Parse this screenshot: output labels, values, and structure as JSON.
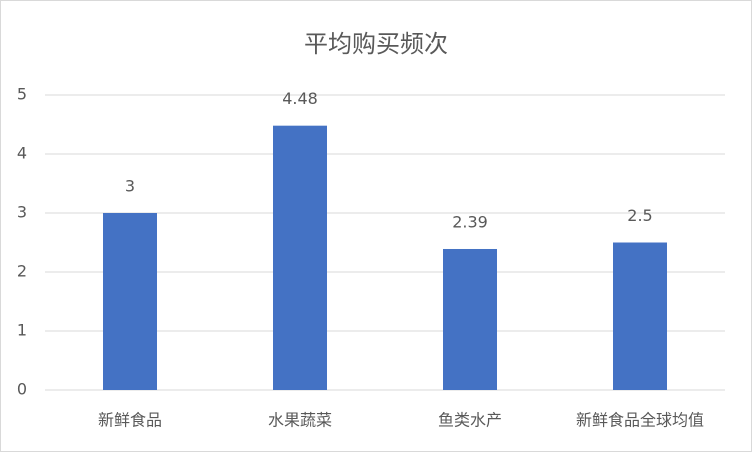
{
  "chart_data": {
    "type": "bar",
    "title": "平均购买频次",
    "categories": [
      "新鲜食品",
      "水果蔬菜",
      "鱼类水产",
      "新鲜食品全球均值"
    ],
    "values": [
      3,
      4.48,
      2.39,
      2.5
    ],
    "color": "#4472c4",
    "ylim": [
      0,
      5
    ],
    "yticks": [
      0,
      1,
      2,
      3,
      4,
      5
    ],
    "grid": true
  }
}
